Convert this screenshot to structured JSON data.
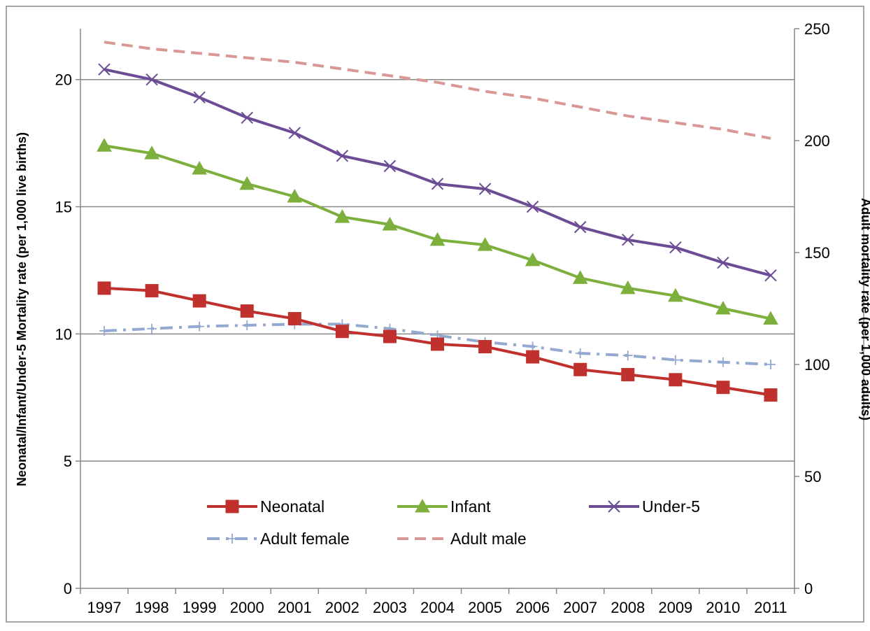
{
  "chart_data": {
    "type": "line",
    "categories": [
      "1997",
      "1998",
      "1999",
      "2000",
      "2001",
      "2002",
      "2003",
      "2004",
      "2005",
      "2006",
      "2007",
      "2008",
      "2009",
      "2010",
      "2011"
    ],
    "ylabel": "Neonatal/Infant/Under-5 Mortality rate (per 1,000 live births)",
    "y2label": "Adult mortality rate (per 1,000 adults)",
    "ylim": [
      0,
      22
    ],
    "y2lim": [
      0,
      250
    ],
    "yticks": [
      0,
      5,
      10,
      15,
      20
    ],
    "y2ticks": [
      0,
      50,
      100,
      150,
      200,
      250
    ],
    "grid": true,
    "legend_position": "bottom-center",
    "series": [
      {
        "name": "Neonatal",
        "axis": "left",
        "color": "#C0312D",
        "marker": "square",
        "dash": "solid",
        "values": [
          11.8,
          11.7,
          11.3,
          10.9,
          10.6,
          10.1,
          9.9,
          9.6,
          9.5,
          9.1,
          8.6,
          8.4,
          8.2,
          7.9,
          7.6
        ]
      },
      {
        "name": "Infant",
        "axis": "left",
        "color": "#7DAF3C",
        "marker": "triangle",
        "dash": "solid",
        "values": [
          17.4,
          17.1,
          16.5,
          15.9,
          15.4,
          14.6,
          14.3,
          13.7,
          13.5,
          12.9,
          12.2,
          11.8,
          11.5,
          11.0,
          10.6
        ]
      },
      {
        "name": "Under-5",
        "axis": "left",
        "color": "#6C4C95",
        "marker": "x",
        "dash": "solid",
        "values": [
          20.4,
          20.0,
          19.3,
          18.5,
          17.9,
          17.0,
          16.6,
          15.9,
          15.7,
          15.0,
          14.2,
          13.7,
          13.4,
          12.8,
          12.3
        ]
      },
      {
        "name": "Adult female",
        "axis": "right",
        "color": "#93A9D0",
        "marker": "plus",
        "dash": "dashdot",
        "values": [
          115,
          116,
          117,
          117.5,
          118,
          118,
          116,
          113,
          110,
          108,
          105,
          104,
          102,
          101,
          100
        ]
      },
      {
        "name": "Adult male",
        "axis": "right",
        "color": "#D99795",
        "marker": "none",
        "dash": "dashed",
        "values": [
          244,
          241,
          239,
          237,
          235,
          232,
          229,
          226,
          222,
          219,
          215,
          211,
          208,
          205,
          201
        ]
      }
    ]
  }
}
